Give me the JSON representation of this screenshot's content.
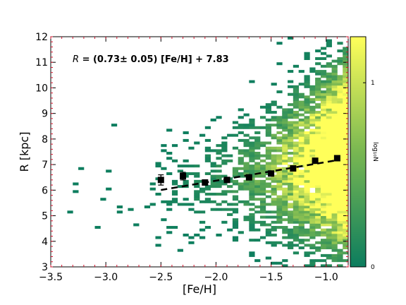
{
  "chart_data": {
    "type": "heatmap",
    "xlabel": "[Fe/H]",
    "ylabel": "R [kpc]",
    "xlim": [
      -3.5,
      -0.8
    ],
    "ylim": [
      3,
      12
    ],
    "x_ticks": [
      -3.5,
      -3.0,
      -2.5,
      -2.0,
      -1.5,
      -1.0
    ],
    "x_tick_labels": [
      "−3.5",
      "−3.0",
      "−2.5",
      "−2.0",
      "−1.5",
      "−1.0"
    ],
    "y_ticks": [
      3,
      4,
      5,
      6,
      7,
      8,
      9,
      10,
      11,
      12
    ],
    "y_tick_labels": [
      "3",
      "4",
      "5",
      "6",
      "7",
      "8",
      "9",
      "10",
      "11",
      "12"
    ],
    "colorbar": {
      "label": "log₁₀N",
      "range": [
        0,
        1.25
      ],
      "ticks": [
        0,
        1
      ],
      "tick_labels": [
        "0",
        "1"
      ],
      "colors": [
        "#0c7d5e",
        "#79b752",
        "#ffff5a"
      ]
    },
    "annotation": {
      "prefix": "R",
      "text": " = (0.73± 0.05) [Fe/H] + 7.83"
    },
    "fit_line": {
      "slope": 0.73,
      "intercept": 7.83,
      "x_range": [
        -2.5,
        -0.9
      ],
      "style": "dashed",
      "color": "#000000"
    },
    "binned_points": {
      "x": [
        -2.5,
        -2.3,
        -2.1,
        -1.9,
        -1.7,
        -1.5,
        -1.3,
        -1.1,
        -0.9
      ],
      "y": [
        6.4,
        6.55,
        6.3,
        6.4,
        6.5,
        6.65,
        6.85,
        7.15,
        7.25
      ],
      "yerr": [
        0.2,
        0.15,
        0.1,
        0.06,
        0.05,
        0.04,
        0.03,
        0.03,
        0.03
      ]
    },
    "grid": false
  }
}
